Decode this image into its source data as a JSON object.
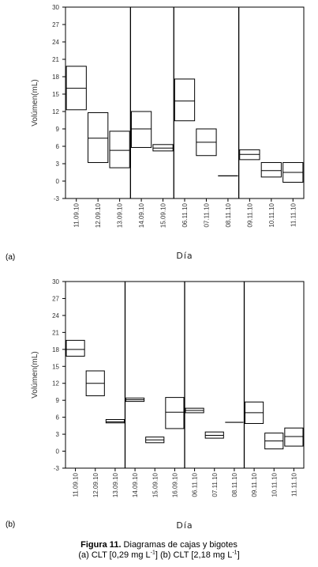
{
  "chart_data": [
    {
      "type": "box",
      "panel_label": "(a)",
      "ylabel": "Volúmen(mL)",
      "xlabel": "Día",
      "ylim": [
        -3,
        30
      ],
      "yticks": [
        -3,
        0,
        3,
        6,
        9,
        12,
        15,
        18,
        21,
        24,
        27,
        30
      ],
      "categories": [
        "11.09.10",
        "12.09.10",
        "13.09.10",
        "14.09.10",
        "15.09.10",
        "06.11.10",
        "07.11.10",
        "08.11.10",
        "09.11.10",
        "10.11.10",
        "11.11.10"
      ],
      "boxes": [
        {
          "q1": 12.3,
          "median": 16.0,
          "q3": 19.8
        },
        {
          "q1": 3.2,
          "median": 7.4,
          "q3": 11.8
        },
        {
          "q1": 2.3,
          "median": 5.3,
          "q3": 8.6
        },
        {
          "q1": 5.8,
          "median": 9.0,
          "q3": 12.0
        },
        {
          "q1": 5.2,
          "median": 5.7,
          "q3": 6.3
        },
        {
          "q1": 10.4,
          "median": 13.8,
          "q3": 17.6
        },
        {
          "q1": 4.4,
          "median": 6.7,
          "q3": 9.0
        },
        {
          "q1": 0.9,
          "median": 0.9,
          "q3": 0.9
        },
        {
          "q1": 3.7,
          "median": 4.6,
          "q3": 5.4
        },
        {
          "q1": 0.7,
          "median": 1.8,
          "q3": 3.2
        },
        {
          "q1": -0.2,
          "median": 1.5,
          "q3": 3.2
        }
      ],
      "separators_after": [
        2,
        4,
        7
      ]
    },
    {
      "type": "box",
      "panel_label": "(b)",
      "ylabel": "Volúmen(mL)",
      "xlabel": "Día",
      "ylim": [
        -3,
        30
      ],
      "yticks": [
        -3,
        0,
        3,
        6,
        9,
        12,
        15,
        18,
        21,
        24,
        27,
        30
      ],
      "categories": [
        "11.09.10",
        "12.09.10",
        "13.09.10",
        "14.09.10",
        "15.09.10",
        "16.09.10",
        "06.11.10",
        "07.11.10",
        "08.11.10",
        "09.11.10",
        "10.11.10",
        "11.11.10"
      ],
      "boxes": [
        {
          "q1": 16.8,
          "median": 18.0,
          "q3": 19.6
        },
        {
          "q1": 9.8,
          "median": 12.0,
          "q3": 14.2
        },
        {
          "q1": 5.0,
          "median": 5.2,
          "q3": 5.6
        },
        {
          "q1": 8.8,
          "median": 9.1,
          "q3": 9.4
        },
        {
          "q1": 1.5,
          "median": 2.0,
          "q3": 2.5
        },
        {
          "q1": 4.0,
          "median": 6.9,
          "q3": 9.5
        },
        {
          "q1": 6.8,
          "median": 7.2,
          "q3": 7.6
        },
        {
          "q1": 2.3,
          "median": 2.8,
          "q3": 3.4
        },
        {
          "q1": 5.1,
          "median": 5.1,
          "q3": 5.1
        },
        {
          "q1": 4.9,
          "median": 6.8,
          "q3": 8.7
        },
        {
          "q1": 0.4,
          "median": 1.8,
          "q3": 3.2
        },
        {
          "q1": 0.9,
          "median": 2.6,
          "q3": 4.1
        }
      ],
      "separators_after": [
        2,
        5,
        8
      ]
    }
  ],
  "caption": {
    "label": "Figura 11.",
    "title": " Diagramas de cajas y bigotes",
    "line2_a": "(a) CLT [0,29 mg L",
    "exp1": "-1",
    "line2_b": "] (b) CLT [2,18 mg L",
    "exp2": "-1",
    "line2_c": "]"
  }
}
